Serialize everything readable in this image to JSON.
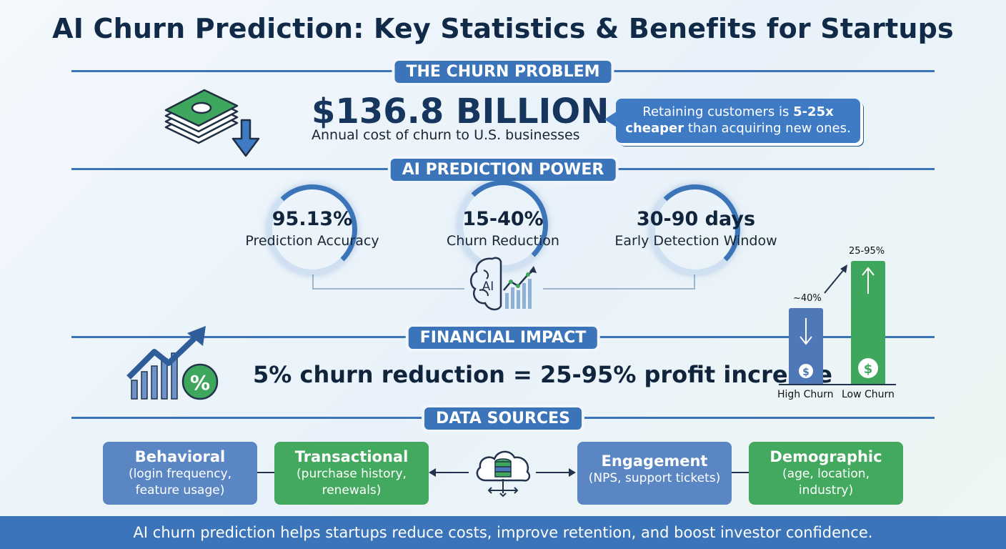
{
  "title": "AI Churn Prediction: Key Statistics & Benefits for Startups",
  "sections": {
    "problem": {
      "heading": "THE CHURN PROBLEM",
      "big_number": "$136.8 BILLION",
      "caption": "Annual cost of churn to U.S. businesses",
      "callout": {
        "pre": "Retaining customers is ",
        "bold1": "5-25x",
        "bold2": "cheaper",
        "post": " than acquiring new ones."
      },
      "icon": "money-down-arrow-icon"
    },
    "prediction": {
      "heading": "AI PREDICTION POWER",
      "stats": [
        {
          "value": "95.13%",
          "label": "Prediction Accuracy"
        },
        {
          "value": "15-40%",
          "label": "Churn Reduction"
        },
        {
          "value": "30-90 days",
          "label": "Early Detection Window"
        }
      ],
      "brain_label": "AI",
      "icon": "ai-brain-chart-icon"
    },
    "financial": {
      "heading": "FINANCIAL IMPACT",
      "statement": "5% churn reduction = 25-95% profit increase",
      "icon": "growth-chart-percent-icon",
      "bars": [
        {
          "label": "High Churn",
          "value_label": "~40%",
          "color": "#4f78b8",
          "direction": "down"
        },
        {
          "label": "Low Churn",
          "value_label": "25-95%",
          "color": "#3fa65d",
          "direction": "up"
        }
      ]
    },
    "data_sources": {
      "heading": "DATA SOURCES",
      "sources": [
        {
          "title": "Behavioral",
          "desc_line1": "(login frequency,",
          "desc_line2": "feature usage)",
          "color": "#5b86c4"
        },
        {
          "title": "Transactional",
          "desc_line1": "(purchase history,",
          "desc_line2": "renewals)",
          "color": "#43a95f"
        },
        {
          "title": "Engagement",
          "desc_line1": "(NPS, support tickets)",
          "desc_line2": "",
          "color": "#5b86c4"
        },
        {
          "title": "Demographic",
          "desc_line1": "(age, location,",
          "desc_line2": "industry)",
          "color": "#43a95f"
        }
      ],
      "hub_icon": "cloud-database-icon"
    }
  },
  "footer": "AI churn prediction helps startups reduce costs, improve retention, and boost investor confidence.",
  "colors": {
    "primary_blue": "#3b74b8",
    "green": "#43a95f",
    "dark_text": "#10243c"
  }
}
